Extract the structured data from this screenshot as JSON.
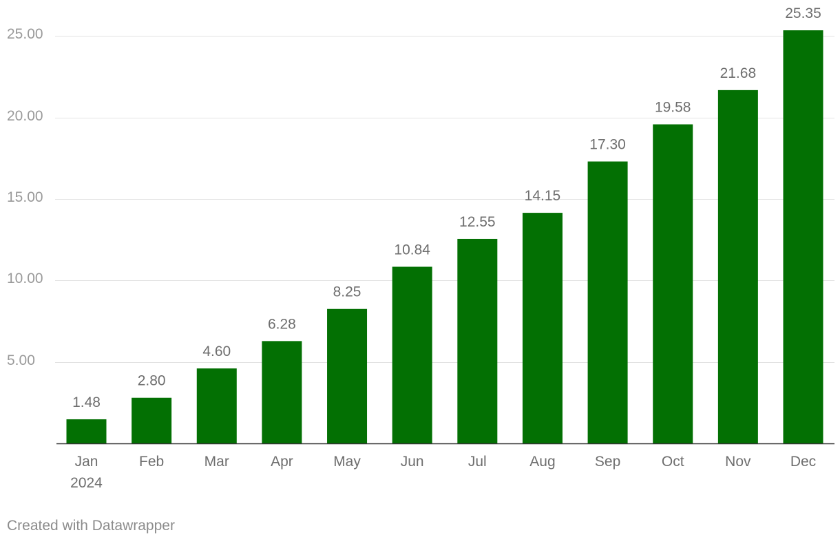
{
  "chart_data": {
    "type": "bar",
    "categories": [
      "Jan",
      "Feb",
      "Mar",
      "Apr",
      "May",
      "Jun",
      "Jul",
      "Aug",
      "Sep",
      "Oct",
      "Nov",
      "Dec"
    ],
    "category_sublabels": [
      "2024",
      "",
      "",
      "",
      "",
      "",
      "",
      "",
      "",
      "",
      "",
      ""
    ],
    "values": [
      1.48,
      2.8,
      4.6,
      6.28,
      8.25,
      10.84,
      12.55,
      14.15,
      17.3,
      19.58,
      21.68,
      25.35
    ],
    "value_labels": [
      "1.48",
      "2.80",
      "4.60",
      "6.28",
      "8.25",
      "10.84",
      "12.55",
      "14.15",
      "17.30",
      "19.58",
      "21.68",
      "25.35"
    ],
    "y_ticks": [
      5,
      10,
      15,
      20,
      25
    ],
    "y_tick_labels": [
      "5.00",
      "10.00",
      "15.00",
      "20.00",
      "25.00"
    ],
    "ylim": [
      0,
      25.35
    ],
    "grid": true,
    "colors": {
      "bar": "#037003",
      "gridline": "#e2e2e2",
      "baseline": "#333333",
      "tick_text": "#9a9a9a",
      "category_text": "#6e6e6e",
      "value_label_text": "#6e6e6e"
    }
  },
  "footer": {
    "credit": "Created with Datawrapper"
  }
}
